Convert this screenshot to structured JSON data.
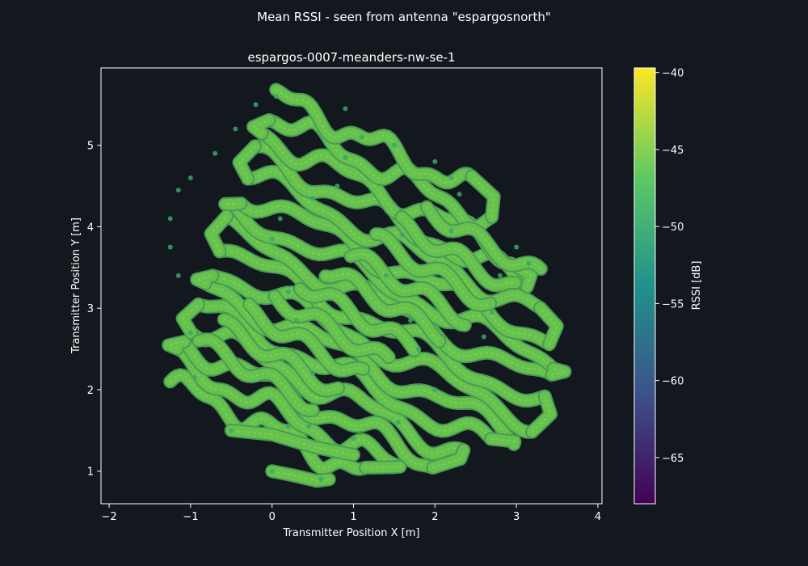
{
  "figure": {
    "suptitle": "Mean RSSI - seen from antenna \"espargosnorth\"",
    "background": "#13181e"
  },
  "chart_data": {
    "type": "scatter",
    "title": "espargos-0007-meanders-nw-se-1",
    "xlabel": "Transmitter Position X [m]",
    "ylabel": "Transmitter Position Y [m]",
    "xlim": [
      -2.1,
      4.05
    ],
    "ylim": [
      0.6,
      5.95
    ],
    "xticks": [
      -2,
      -1,
      0,
      1,
      2,
      3,
      4
    ],
    "yticks": [
      1,
      2,
      3,
      4,
      5
    ],
    "grid": false,
    "colorbar": {
      "label": "RSSI [dB]",
      "range": [
        -68,
        -39.7
      ],
      "ticks": [
        -40,
        -45,
        -50,
        -55,
        -60,
        -65
      ],
      "colormap": "viridis",
      "colors": [
        "#440154",
        "#3b528b",
        "#21918c",
        "#5ec962",
        "#fde725"
      ]
    },
    "series": [
      {
        "points": [
          [
            -0.95,
            2.15
          ],
          [
            0.2,
            1.55
          ],
          [
            1.55,
            1.6
          ],
          [
            -1.0,
            2.7
          ],
          [
            0.5,
            2.2
          ],
          [
            2.0,
            2.0
          ],
          [
            -1.15,
            3.4
          ],
          [
            0.3,
            2.85
          ],
          [
            1.8,
            2.5
          ],
          [
            2.6,
            2.65
          ],
          [
            -1.25,
            3.75
          ],
          [
            0.2,
            3.2
          ],
          [
            1.7,
            2.85
          ],
          [
            2.7,
            2.95
          ],
          [
            -1.25,
            4.1
          ],
          [
            0.0,
            3.85
          ],
          [
            1.4,
            3.4
          ],
          [
            2.8,
            3.4
          ],
          [
            -1.15,
            4.45
          ],
          [
            0.1,
            4.1
          ],
          [
            1.6,
            3.9
          ],
          [
            3.15,
            3.55
          ],
          [
            -1.0,
            4.6
          ],
          [
            0.5,
            4.35
          ],
          [
            2.2,
            3.95
          ],
          [
            3.0,
            3.75
          ],
          [
            -0.7,
            4.9
          ],
          [
            0.8,
            4.5
          ],
          [
            2.3,
            4.4
          ],
          [
            -0.45,
            5.2
          ],
          [
            0.9,
            4.85
          ],
          [
            2.2,
            4.6
          ],
          [
            -0.2,
            5.5
          ],
          [
            1.1,
            5.1
          ],
          [
            2.0,
            4.8
          ],
          [
            0.05,
            5.6
          ],
          [
            0.9,
            5.45
          ],
          [
            1.5,
            5.0
          ],
          [
            0.6,
            0.9
          ],
          [
            0.0,
            1.0
          ],
          [
            -0.5,
            1.5
          ],
          [
            0.45,
            1.55
          ],
          [
            1.0,
            1.4
          ]
        ],
        "mean_rssi": -46
      }
    ]
  }
}
